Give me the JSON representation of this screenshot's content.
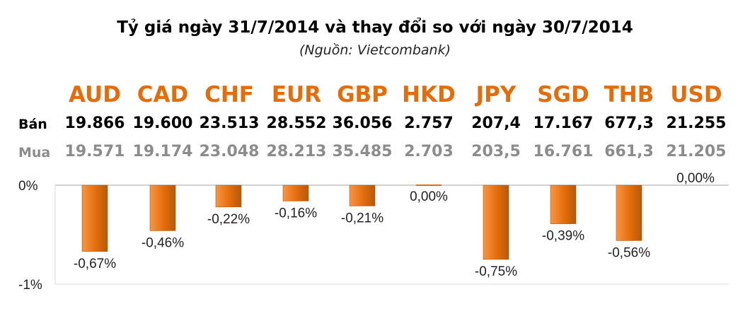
{
  "header": {
    "title": "Tỷ giá ngày 31/7/2014 và thay đổi so với ngày 30/7/2014",
    "subtitle": "(Nguồn: Vietcombank)"
  },
  "rows": {
    "ban_label": "Bán",
    "mua_label": "Mua"
  },
  "currencies": [
    {
      "code": "AUD",
      "ban": "19.866",
      "mua": "19.571"
    },
    {
      "code": "CAD",
      "ban": "19.600",
      "mua": "19.174"
    },
    {
      "code": "CHF",
      "ban": "23.513",
      "mua": "23.048"
    },
    {
      "code": "EUR",
      "ban": "28.552",
      "mua": "28.213"
    },
    {
      "code": "GBP",
      "ban": "36.056",
      "mua": "35.485"
    },
    {
      "code": "HKD",
      "ban": "2.757",
      "mua": "2.703"
    },
    {
      "code": "JPY",
      "ban": "207,4",
      "mua": "203,5"
    },
    {
      "code": "SGD",
      "ban": "17.167",
      "mua": "16.761"
    },
    {
      "code": "THB",
      "ban": "677,3",
      "mua": "661,3"
    },
    {
      "code": "USD",
      "ban": "21.255",
      "mua": "21.205"
    }
  ],
  "colors": {
    "accent": "#e46c0a",
    "bar_light": "#f79646",
    "bar_dark": "#b35a0c",
    "mua_text": "#8c8c8c"
  },
  "chart_data": {
    "type": "bar",
    "categories": [
      "AUD",
      "CAD",
      "CHF",
      "EUR",
      "GBP",
      "HKD",
      "JPY",
      "SGD",
      "THB",
      "USD"
    ],
    "values": [
      -0.67,
      -0.46,
      -0.22,
      -0.16,
      -0.21,
      0.0,
      -0.75,
      -0.39,
      -0.56,
      0.0
    ],
    "data_labels": [
      "-0,67%",
      "-0,46%",
      "-0,22%",
      "-0,16%",
      "-0,21%",
      "0,00%",
      "-0,75%",
      "-0,39%",
      "-0,56%",
      "0,00%"
    ],
    "ylim": [
      -1,
      0
    ],
    "yticks": [
      {
        "value": 0,
        "label": "0%"
      },
      {
        "value": -1,
        "label": "-1%"
      }
    ],
    "grid": false,
    "title": "",
    "xlabel": "",
    "ylabel": ""
  }
}
